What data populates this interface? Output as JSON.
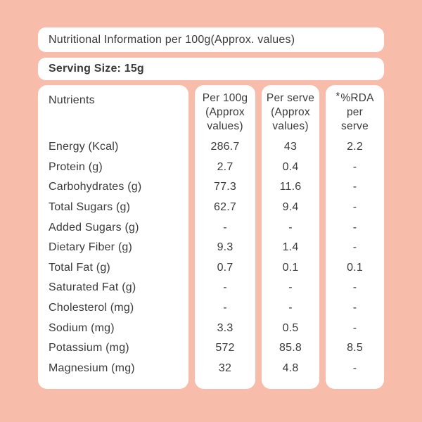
{
  "colors": {
    "background": "#f8bcaa",
    "panel": "#ffffff",
    "text": "#3a3a3a"
  },
  "title_bar": {
    "text": "Nutritional Information per 100g(Approx. values)"
  },
  "serving_bar": {
    "text": "Serving Size: 15g"
  },
  "table": {
    "columns": [
      {
        "lines": [
          "Nutrients"
        ]
      },
      {
        "lines": [
          "Per 100g",
          "(Approx",
          "values)"
        ]
      },
      {
        "lines": [
          "Per serve",
          "(Approx",
          "values)"
        ]
      },
      {
        "asterisk": "*",
        "lines": [
          "%RDA",
          "per",
          "serve"
        ]
      }
    ],
    "rows": [
      {
        "label": "Energy (Kcal)",
        "per_100g": "286.7",
        "per_serve": "43",
        "rda": "2.2"
      },
      {
        "label": "Protein (g)",
        "per_100g": "2.7",
        "per_serve": "0.4",
        "rda": "-"
      },
      {
        "label": "Carbohydrates (g)",
        "per_100g": "77.3",
        "per_serve": "11.6",
        "rda": "-"
      },
      {
        "label": "Total Sugars (g)",
        "per_100g": "62.7",
        "per_serve": "9.4",
        "rda": "-"
      },
      {
        "label": "Added Sugars (g)",
        "per_100g": "-",
        "per_serve": "-",
        "rda": "-"
      },
      {
        "label": "Dietary Fiber (g)",
        "per_100g": "9.3",
        "per_serve": "1.4",
        "rda": "-"
      },
      {
        "label": "Total Fat (g)",
        "per_100g": "0.7",
        "per_serve": "0.1",
        "rda": "0.1"
      },
      {
        "label": "Saturated Fat (g)",
        "per_100g": "-",
        "per_serve": "-",
        "rda": "-"
      },
      {
        "label": "Cholesterol (mg)",
        "per_100g": "-",
        "per_serve": "-",
        "rda": "-"
      },
      {
        "label": "Sodium (mg)",
        "per_100g": "3.3",
        "per_serve": "0.5",
        "rda": "-"
      },
      {
        "label": "Potassium (mg)",
        "per_100g": "572",
        "per_serve": "85.8",
        "rda": "8.5"
      },
      {
        "label": "Magnesium (mg)",
        "per_100g": "32",
        "per_serve": "4.8",
        "rda": "-"
      }
    ]
  }
}
